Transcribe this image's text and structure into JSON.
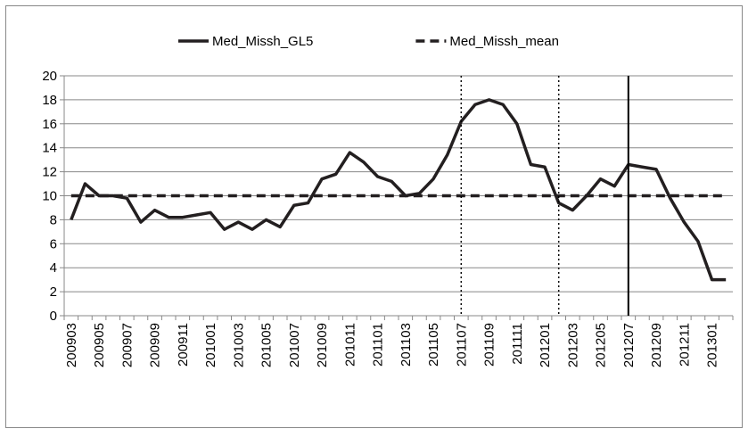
{
  "chart_data": {
    "type": "line",
    "categories": [
      "200903",
      null,
      "200905",
      null,
      "200907",
      null,
      "200909",
      null,
      "200911",
      null,
      "201001",
      null,
      "201003",
      null,
      "201005",
      null,
      "201007",
      null,
      "201009",
      null,
      "201011",
      null,
      "201101",
      null,
      "201103",
      null,
      "201105",
      null,
      "201107",
      null,
      "201109",
      null,
      "201111",
      null,
      "201201",
      null,
      "201203",
      null,
      "201205",
      null,
      "201207",
      null,
      "201209",
      null,
      "201211",
      null,
      "201301",
      null
    ],
    "series": [
      {
        "name": "Med_Missh_GL5",
        "color": "#231f20",
        "dash": "solid",
        "values": [
          8,
          11,
          10,
          10,
          9.8,
          7.8,
          8.8,
          8.2,
          8.2,
          8.4,
          8.6,
          7.2,
          7.8,
          7.2,
          8,
          7.4,
          9.2,
          9.4,
          11.4,
          11.8,
          13.6,
          12.8,
          11.6,
          11.2,
          10,
          10.2,
          11.4,
          13.4,
          16.2,
          17.6,
          18,
          17.6,
          16,
          12.6,
          12.4,
          9.4,
          8.8,
          10,
          11.4,
          10.8,
          12.6,
          12.4,
          12.2,
          9.8,
          7.8,
          6.2,
          3,
          3
        ]
      },
      {
        "name": "Med_Missh_mean",
        "color": "#231f20",
        "dash": "dashed",
        "values": [
          10,
          10,
          10,
          10,
          10,
          10,
          10,
          10,
          10,
          10,
          10,
          10,
          10,
          10,
          10,
          10,
          10,
          10,
          10,
          10,
          10,
          10,
          10,
          10,
          10,
          10,
          10,
          10,
          10,
          10,
          10,
          10,
          10,
          10,
          10,
          10,
          10,
          10,
          10,
          10,
          10,
          10,
          10,
          10,
          10,
          10,
          10,
          10
        ]
      }
    ],
    "vlines": [
      {
        "at": 28,
        "dash": "dotted"
      },
      {
        "at": 35,
        "dash": "dotted"
      },
      {
        "at": 40,
        "dash": "solid"
      }
    ],
    "ylim": [
      0,
      20
    ],
    "yticks": [
      0,
      2,
      4,
      6,
      8,
      10,
      12,
      14,
      16,
      18,
      20
    ],
    "grid": true,
    "legend": "top"
  }
}
